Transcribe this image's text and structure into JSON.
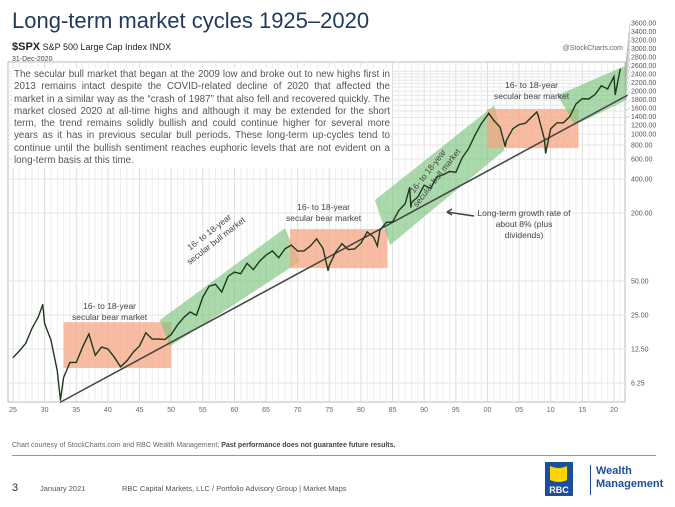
{
  "header": {
    "title": "Long-term market cycles 1925–2020"
  },
  "chart_header": {
    "symbol": "$SPX",
    "name": "S&P 500 Large Cap Index",
    "exchange": "INDX",
    "date": "31-Dec-2020",
    "credit": "@StockCharts.com"
  },
  "commentary": "The secular bull market that began at the 2009 low and broke out to new highs first in 2013 remains intact despite the COVID-related decline of 2020 that affected the market in a similar way as the “crash of 1987” that also fell and recovered quickly. The market closed 2020 at all-time highs and although it may be extended for the short term, the trend remains solidly bullish and could continue higher for several more years as it has in previous secular bull periods. These long-term up-cycles tend to continue until the bullish sentiment reaches euphoric levels that are not evident on a long-term basis at this time.",
  "chart_data": {
    "type": "line",
    "title": "S&P 500 Large Cap Index (log scale)",
    "xlabel": "",
    "ylabel": "",
    "xlim": [
      1924.2,
      2021.8
    ],
    "ylim": [
      4,
      4200
    ],
    "yscale": "log",
    "grid": true,
    "x_ticks": [
      1925,
      1930,
      1935,
      1940,
      1945,
      1950,
      1955,
      1960,
      1965,
      1970,
      1975,
      1980,
      1985,
      1990,
      1995,
      2000,
      2005,
      2010,
      2015,
      2020
    ],
    "x_tick_labels": [
      "25",
      "30",
      "35",
      "40",
      "45",
      "50",
      "55",
      "60",
      "65",
      "70",
      "75",
      "80",
      "85",
      "90",
      "95",
      "00",
      "05",
      "10",
      "15",
      "20"
    ],
    "y_ticks": [
      6.25,
      12.5,
      25,
      50,
      200,
      400,
      600,
      800,
      1000,
      1200,
      1400,
      1600,
      1800,
      2000,
      2200,
      2400,
      2600,
      2800,
      3000,
      3200,
      3400,
      3600
    ],
    "y_tick_labels": [
      "6.25",
      "12.50",
      "25.00",
      "50.00",
      "200.00",
      "400.00",
      "600.00",
      "800.00",
      "1000.00",
      "1200.00",
      "1400.00",
      "1600.00",
      "1800.00",
      "2000.00",
      "2200.00",
      "2400.00",
      "2600.00",
      "2800.00",
      "3000.00",
      "3200.00",
      "3400.00",
      "3600.00"
    ],
    "series": [
      {
        "name": "$SPX",
        "color": "#1e3a1e",
        "x": [
          1925,
          1926,
          1927,
          1928,
          1929,
          1929.7,
          1930,
          1931,
          1932,
          1932.5,
          1933,
          1934,
          1935,
          1936,
          1937,
          1938,
          1939,
          1940,
          1941,
          1942,
          1943,
          1944,
          1945,
          1946,
          1947,
          1948,
          1949,
          1950,
          1951,
          1952,
          1953,
          1954,
          1955,
          1956,
          1957,
          1958,
          1959,
          1960,
          1961,
          1962,
          1963,
          1964,
          1965,
          1966,
          1967,
          1968,
          1969,
          1970,
          1971,
          1972,
          1973,
          1974,
          1974.8,
          1975,
          1976,
          1977,
          1978,
          1979,
          1980,
          1981,
          1982,
          1982.6,
          1983,
          1984,
          1985,
          1986,
          1987,
          1987.7,
          1987.9,
          1988,
          1989,
          1990,
          1991,
          1992,
          1993,
          1994,
          1995,
          1996,
          1997,
          1998,
          1999,
          2000,
          2000.2,
          2001,
          2002,
          2002.8,
          2003,
          2004,
          2005,
          2006,
          2007,
          2007.8,
          2008,
          2009,
          2009.2,
          2010,
          2011,
          2012,
          2013,
          2014,
          2015,
          2016,
          2017,
          2018,
          2019,
          2020,
          2020.2,
          2020.99
        ],
        "y": [
          10.5,
          12,
          14,
          19,
          24,
          31,
          21,
          15,
          8,
          4.4,
          7,
          9.5,
          9.5,
          13,
          17,
          11,
          13,
          12.5,
          10.6,
          8.7,
          9.8,
          11.7,
          13.3,
          17.4,
          15.3,
          15.3,
          15.2,
          16.8,
          20.4,
          23.8,
          26.6,
          24.8,
          36,
          45,
          46.7,
          39.9,
          55,
          59.9,
          58.1,
          71.6,
          63.1,
          75,
          84.8,
          92.4,
          80.3,
          96.5,
          103.9,
          92,
          92.2,
          102,
          118,
          97.5,
          62,
          68.6,
          90.2,
          107,
          95,
          96,
          108,
          136,
          122,
          102,
          141,
          165,
          167,
          211,
          242,
          336,
          225,
          247,
          278,
          353,
          330,
          417,
          436,
          466,
          459,
          616,
          741,
          970,
          1229,
          1469,
          1527,
          1320,
          1148,
          777,
          880,
          1112,
          1212,
          1248,
          1418,
          1565,
          1468,
          903,
          677,
          1115,
          1258,
          1258,
          1426,
          1848,
          2059,
          2044,
          2239,
          2674,
          2507,
          3231,
          2237,
          3756
        ]
      }
    ],
    "trend_line": {
      "label": "Long-term growth rate of about 8% (plus dividends)",
      "x": [
        1932.4,
        2022.2
      ],
      "y": [
        4.2,
        2218
      ]
    },
    "regions": [
      {
        "kind": "bear",
        "label_line1": "16- to 18-year",
        "label_line2": "secular bear market",
        "color": "#f4a582",
        "x": [
          1933,
          1950
        ],
        "y": [
          8.5,
          21.6
        ]
      },
      {
        "kind": "bull",
        "label_line1": "16- to 18-year",
        "label_line2": "secular bull market",
        "color": "#7cc47f",
        "polygon": [
          [
            1948.2,
            22.5
          ],
          [
            1968,
            147
          ],
          [
            1970.3,
            74
          ],
          [
            1949.8,
            13.2
          ]
        ]
      },
      {
        "kind": "bear",
        "label_line1": "16- to 18-year",
        "label_line2": "secular bear market",
        "color": "#f4a582",
        "x": [
          1968.8,
          1984.2
        ],
        "y": [
          65,
          144
        ]
      },
      {
        "kind": "bull",
        "label_line1": "16- to 18-year",
        "label_line2": "secular bull market",
        "color": "#7cc47f",
        "polygon": [
          [
            1982.2,
            260
          ],
          [
            2001.1,
            1800
          ],
          [
            2002.7,
            720
          ],
          [
            1984.6,
            104
          ]
        ]
      },
      {
        "kind": "bear",
        "label_line1": "16- to 18-year",
        "label_line2": "secular bear market",
        "color": "#f4a582",
        "x": [
          1999.9,
          2014.4
        ],
        "y": [
          751,
          1670
        ]
      },
      {
        "kind": "bull",
        "label_line1": "",
        "label_line2": "",
        "color": "#7cc47f",
        "polygon": [
          [
            2011.1,
            2210
          ],
          [
            2022,
            4080
          ],
          [
            2022,
            2000
          ],
          [
            2013.8,
            1200
          ]
        ]
      }
    ]
  },
  "footer": {
    "credit": "Chart courtesy of StockCharts.com  and RBC Wealth Management;",
    "disclaimer": "Past performance does not guarantee future results.",
    "page_number": "3",
    "date": "January 2021",
    "org": "RBC Capital Markets, LLC / Portfolio Advisory Group  |  Market Maps",
    "logo_text": "RBC",
    "brand_line1": "Wealth",
    "brand_line2": "Management"
  }
}
